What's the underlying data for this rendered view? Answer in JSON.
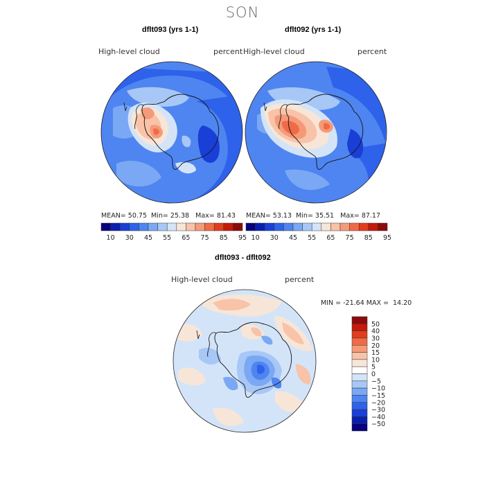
{
  "figure": {
    "season": "SON"
  },
  "panels": [
    {
      "title": "dflt093 (yrs 1-1)",
      "variable": "High-level  cloud",
      "units": "percent",
      "stats": {
        "mean_label": "MEAN=",
        "mean": "50.75",
        "min_label": "Min=",
        "min": "25.38",
        "max_label": "Max=",
        "max": "81.43"
      }
    },
    {
      "title": "dflt092 (yrs 1-1)",
      "variable": "High-level  cloud",
      "units": "percent",
      "stats": {
        "mean_label": "MEAN=",
        "mean": "53.13",
        "min_label": "Min=",
        "min": "35.51",
        "max_label": "Max=",
        "max": "87.17"
      }
    },
    {
      "title": "dflt093 - dflt092",
      "variable": "High-level  cloud",
      "units": "percent",
      "stats": {
        "min_label": "MIN =",
        "min": "-21.64",
        "max_label": "MAX =",
        "max": "14.20"
      }
    }
  ],
  "colorbars": {
    "absolute": {
      "tick_labels": [
        "10",
        "30",
        "45",
        "55",
        "65",
        "75",
        "85",
        "95"
      ],
      "colors": [
        "#08007f",
        "#0a1fb0",
        "#1a3fd6",
        "#2e62ea",
        "#4f85f0",
        "#7aa8f4",
        "#a7c7f6",
        "#d4e4f8",
        "#f7e6d8",
        "#f8c3a8",
        "#f59a78",
        "#ef6b48",
        "#e33e1c",
        "#c41a0a",
        "#8e0a0a"
      ]
    },
    "difference": {
      "tick_labels": [
        "50",
        "40",
        "30",
        "20",
        "15",
        "10",
        "5",
        "0",
        "−5",
        "−10",
        "−15",
        "−20",
        "−30",
        "−40",
        "−50"
      ],
      "colors": [
        "#8e0a0a",
        "#c41a0a",
        "#e33e1c",
        "#ef6b48",
        "#f59a78",
        "#f8c3a8",
        "#f7e6d8",
        "#ffffff",
        "#d4e4f8",
        "#a7c7f6",
        "#7aa8f4",
        "#4f85f0",
        "#2e62ea",
        "#1a3fd6",
        "#0a1fb0",
        "#08007f"
      ]
    }
  }
}
